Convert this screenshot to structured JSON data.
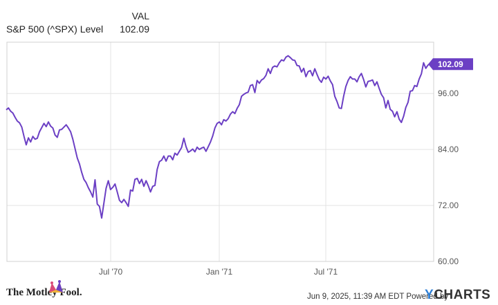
{
  "header": {
    "col_label": "VAL",
    "series_label": "S&P 500 (^SPX) Level",
    "series_value": "102.09"
  },
  "chart_data": {
    "type": "line",
    "x_ticks": [
      "Jul '70",
      "Jan '71",
      "Jul '71"
    ],
    "y_ticks": [
      "60.00",
      "72.00",
      "84.00",
      "96.00"
    ],
    "ylim": [
      60,
      107
    ],
    "grid": true,
    "last_value_label": "102.09",
    "series": [
      {
        "name": "S&P 500 (^SPX) Level",
        "color": "#6b3fc4",
        "points": [
          [
            0,
            92.5
          ],
          [
            1,
            92.9
          ],
          [
            2,
            92.2
          ],
          [
            3,
            91.8
          ],
          [
            4,
            90.9
          ],
          [
            5,
            90.1
          ],
          [
            6,
            89.7
          ],
          [
            7,
            88.8
          ],
          [
            8,
            86.8
          ],
          [
            9,
            85.0
          ],
          [
            10,
            86.5
          ],
          [
            11,
            85.6
          ],
          [
            12,
            86.8
          ],
          [
            13,
            86.2
          ],
          [
            14,
            86.4
          ],
          [
            15,
            87.8
          ],
          [
            16,
            88.7
          ],
          [
            17,
            89.6
          ],
          [
            18,
            88.9
          ],
          [
            19,
            89.9
          ],
          [
            20,
            89.0
          ],
          [
            21,
            88.6
          ],
          [
            22,
            87.1
          ],
          [
            23,
            86.6
          ],
          [
            24,
            88.2
          ],
          [
            25,
            88.3
          ],
          [
            26,
            88.8
          ],
          [
            27,
            89.3
          ],
          [
            28,
            88.6
          ],
          [
            29,
            87.8
          ],
          [
            30,
            86.2
          ],
          [
            31,
            84.2
          ],
          [
            32,
            82.2
          ],
          [
            33,
            80.9
          ],
          [
            34,
            79.1
          ],
          [
            35,
            77.6
          ],
          [
            36,
            76.9
          ],
          [
            37,
            75.8
          ],
          [
            38,
            74.9
          ],
          [
            39,
            73.8
          ],
          [
            40,
            77.5
          ],
          [
            41,
            72.3
          ],
          [
            42,
            71.8
          ],
          [
            43,
            69.3
          ],
          [
            44,
            72.5
          ],
          [
            45,
            75.7
          ],
          [
            46,
            77.3
          ],
          [
            47,
            75.4
          ],
          [
            48,
            75.9
          ],
          [
            49,
            76.6
          ],
          [
            50,
            74.9
          ],
          [
            51,
            73.1
          ],
          [
            52,
            72.6
          ],
          [
            53,
            73.3
          ],
          [
            54,
            72.6
          ],
          [
            55,
            71.8
          ],
          [
            56,
            75.3
          ],
          [
            57,
            75.1
          ],
          [
            58,
            77.6
          ],
          [
            59,
            77.8
          ],
          [
            60,
            76.7
          ],
          [
            61,
            77.6
          ],
          [
            62,
            76.1
          ],
          [
            63,
            77.3
          ],
          [
            64,
            76.2
          ],
          [
            65,
            74.9
          ],
          [
            66,
            76.1
          ],
          [
            67,
            76.3
          ],
          [
            68,
            79.7
          ],
          [
            69,
            81.4
          ],
          [
            70,
            81.7
          ],
          [
            71,
            82.6
          ],
          [
            72,
            81.5
          ],
          [
            73,
            82.6
          ],
          [
            74,
            82.6
          ],
          [
            75,
            81.8
          ],
          [
            76,
            83.2
          ],
          [
            77,
            82.8
          ],
          [
            78,
            83.6
          ],
          [
            79,
            84.4
          ],
          [
            80,
            86.4
          ],
          [
            81,
            84.6
          ],
          [
            82,
            83.4
          ],
          [
            83,
            83.7
          ],
          [
            84,
            84.1
          ],
          [
            85,
            83.5
          ],
          [
            86,
            84.5
          ],
          [
            87,
            84.0
          ],
          [
            88,
            84.3
          ],
          [
            89,
            84.5
          ],
          [
            90,
            83.6
          ],
          [
            91,
            84.6
          ],
          [
            92,
            85.6
          ],
          [
            93,
            86.9
          ],
          [
            94,
            88.6
          ],
          [
            95,
            89.6
          ],
          [
            96,
            89.9
          ],
          [
            97,
            89.3
          ],
          [
            98,
            90.4
          ],
          [
            99,
            90.1
          ],
          [
            100,
            90.6
          ],
          [
            101,
            91.6
          ],
          [
            102,
            92.1
          ],
          [
            103,
            91.7
          ],
          [
            104,
            92.8
          ],
          [
            105,
            93.6
          ],
          [
            106,
            95.4
          ],
          [
            107,
            95.8
          ],
          [
            108,
            96.1
          ],
          [
            109,
            96.3
          ],
          [
            110,
            97.7
          ],
          [
            111,
            97.9
          ],
          [
            112,
            96.2
          ],
          [
            113,
            98.8
          ],
          [
            114,
            98.2
          ],
          [
            115,
            98.9
          ],
          [
            116,
            99.2
          ],
          [
            117,
            99.9
          ],
          [
            118,
            101.3
          ],
          [
            119,
            100.3
          ],
          [
            120,
            101.6
          ],
          [
            121,
            101.9
          ],
          [
            122,
            101.7
          ],
          [
            123,
            102.6
          ],
          [
            124,
            103.2
          ],
          [
            125,
            103.0
          ],
          [
            126,
            103.8
          ],
          [
            127,
            104.1
          ],
          [
            128,
            103.7
          ],
          [
            129,
            103.2
          ],
          [
            130,
            103.1
          ],
          [
            131,
            102.0
          ],
          [
            132,
            101.9
          ],
          [
            133,
            100.6
          ],
          [
            134,
            101.4
          ],
          [
            135,
            99.6
          ],
          [
            136,
            100.7
          ],
          [
            137,
            100.9
          ],
          [
            138,
            99.8
          ],
          [
            139,
            101.3
          ],
          [
            140,
            100.1
          ],
          [
            141,
            99.0
          ],
          [
            142,
            98.4
          ],
          [
            143,
            99.5
          ],
          [
            144,
            99.1
          ],
          [
            145,
            99.7
          ],
          [
            146,
            98.7
          ],
          [
            147,
            97.9
          ],
          [
            148,
            95.4
          ],
          [
            149,
            94.3
          ],
          [
            150,
            92.9
          ],
          [
            151,
            92.8
          ],
          [
            152,
            95.4
          ],
          [
            153,
            97.5
          ],
          [
            154,
            98.8
          ],
          [
            155,
            99.6
          ],
          [
            156,
            99.1
          ],
          [
            157,
            99.1
          ],
          [
            158,
            98.5
          ],
          [
            159,
            99.6
          ],
          [
            160,
            100.3
          ],
          [
            161,
            99.0
          ],
          [
            162,
            97.4
          ],
          [
            163,
            98.6
          ],
          [
            164,
            98.7
          ],
          [
            165,
            98.9
          ],
          [
            166,
            97.7
          ],
          [
            167,
            98.5
          ],
          [
            168,
            97.1
          ],
          [
            169,
            95.8
          ],
          [
            170,
            95.1
          ],
          [
            171,
            92.9
          ],
          [
            172,
            94.5
          ],
          [
            173,
            92.6
          ],
          [
            174,
            92.2
          ],
          [
            175,
            91.0
          ],
          [
            176,
            92.1
          ],
          [
            177,
            90.5
          ],
          [
            178,
            89.8
          ],
          [
            179,
            91.1
          ],
          [
            180,
            93.0
          ],
          [
            181,
            94.1
          ],
          [
            182,
            96.5
          ],
          [
            183,
            96.6
          ],
          [
            184,
            97.7
          ],
          [
            185,
            97.5
          ],
          [
            186,
            99.1
          ],
          [
            187,
            100.2
          ],
          [
            188,
            102.6
          ],
          [
            189,
            101.4
          ],
          [
            190,
            102.1
          ],
          [
            191,
            102.3
          ]
        ]
      }
    ]
  },
  "footer": {
    "brand": "The Motley Fool.",
    "timestamp_text": "Jun 9, 2025, 11:39 AM EDT Powered by",
    "ycharts_y": "Y",
    "ycharts_rest": "CHARTS",
    "accent_color": "#6b3fc4"
  }
}
